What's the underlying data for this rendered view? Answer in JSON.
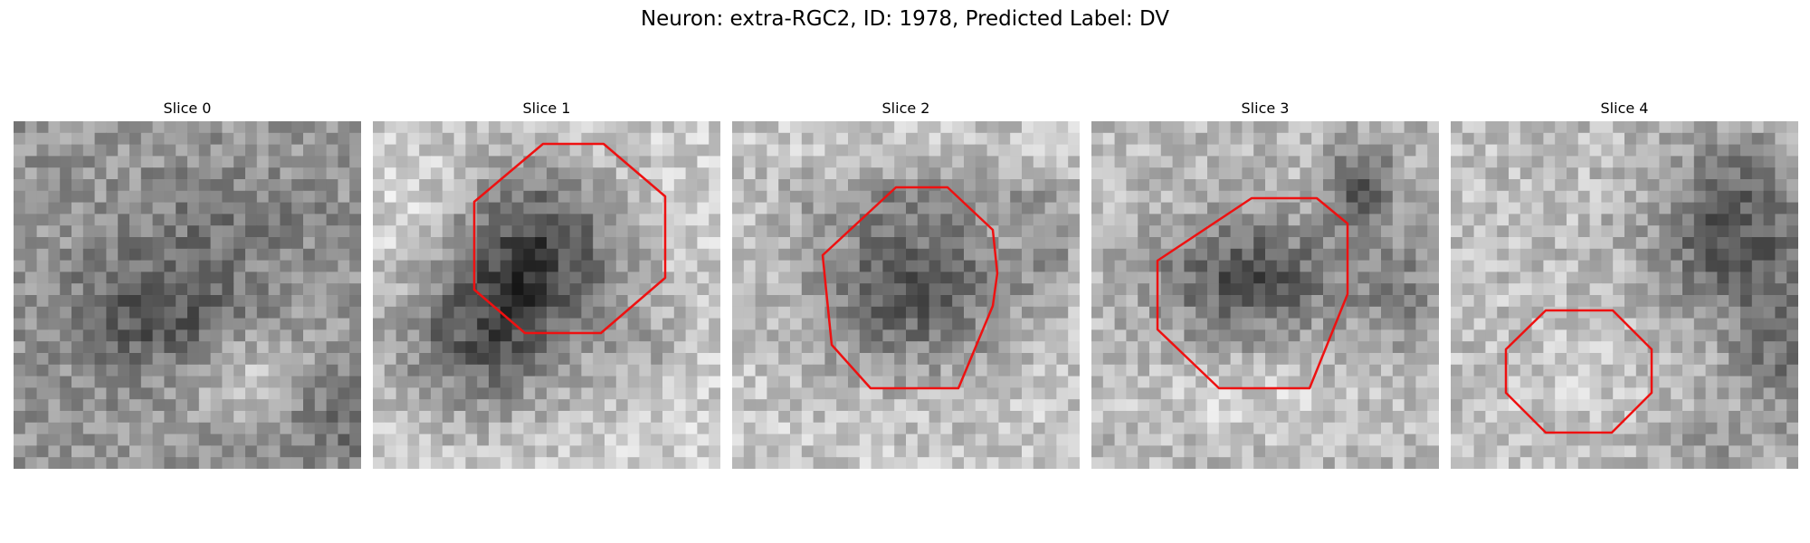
{
  "figure": {
    "title": "Neuron: extra-RGC2, ID: 1978, Predicted Label: DV"
  },
  "panels": [
    {
      "title": "Slice 0",
      "roi": false
    },
    {
      "title": "Slice 1",
      "roi": true
    },
    {
      "title": "Slice 2",
      "roi": true
    },
    {
      "title": "Slice 3",
      "roi": true
    },
    {
      "title": "Slice 4",
      "roi": true
    }
  ],
  "image": {
    "colormap": "grayscale",
    "grid": "30x30 pixel patch per slice"
  },
  "colors": {
    "roi_outline": "#ee1111"
  }
}
